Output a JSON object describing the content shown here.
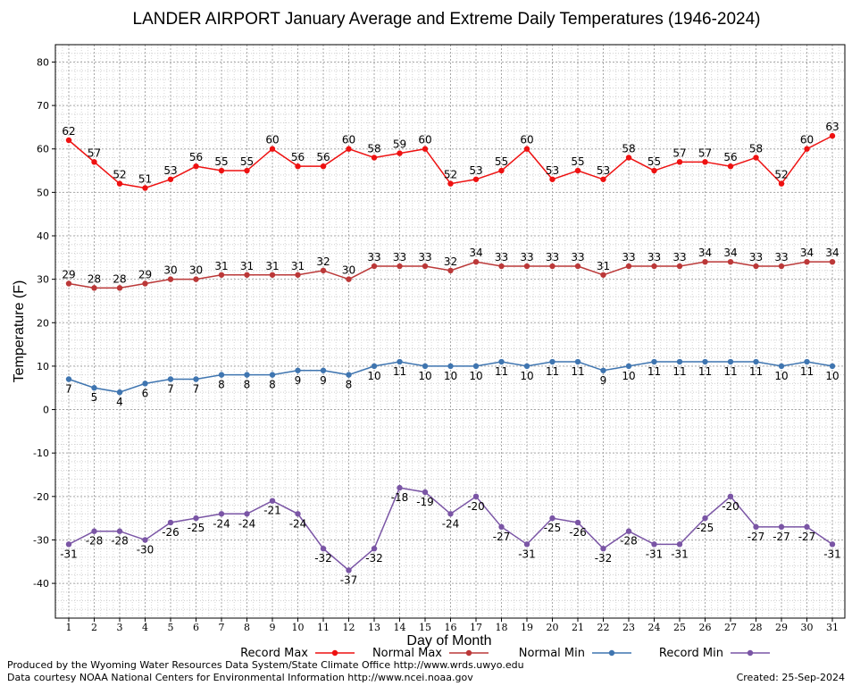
{
  "chart_data": {
    "type": "line",
    "title": "LANDER AIRPORT January Average and Extreme Daily Temperatures (1946-2024)",
    "xlabel": "Day of Month",
    "ylabel": "Temperature (F)",
    "ylim": [
      -48,
      84
    ],
    "yticks": [
      -40,
      -30,
      -20,
      -10,
      0,
      10,
      20,
      30,
      40,
      50,
      60,
      70,
      80
    ],
    "grid": true,
    "legend_position": "bottom",
    "x": [
      1,
      2,
      3,
      4,
      5,
      6,
      7,
      8,
      9,
      10,
      11,
      12,
      13,
      14,
      15,
      16,
      17,
      18,
      19,
      20,
      21,
      22,
      23,
      24,
      25,
      26,
      27,
      28,
      29,
      30,
      31
    ],
    "series": [
      {
        "name": "Record Max",
        "color": "#ee1111",
        "label_side": "above",
        "values": [
          62,
          57,
          52,
          51,
          53,
          56,
          55,
          55,
          60,
          56,
          56,
          60,
          58,
          59,
          60,
          52,
          53,
          55,
          60,
          53,
          55,
          53,
          58,
          55,
          57,
          57,
          56,
          58,
          52,
          60,
          63
        ]
      },
      {
        "name": "Normal Max",
        "color": "#bb3838",
        "label_side": "above",
        "values": [
          29,
          28,
          28,
          29,
          30,
          30,
          31,
          31,
          31,
          31,
          32,
          30,
          33,
          33,
          33,
          32,
          34,
          33,
          33,
          33,
          33,
          31,
          33,
          33,
          33,
          34,
          34,
          33,
          33,
          34,
          34
        ]
      },
      {
        "name": "Normal Min",
        "color": "#3f75b0",
        "label_side": "below",
        "values": [
          7,
          5,
          4,
          6,
          7,
          7,
          8,
          8,
          8,
          9,
          9,
          8,
          10,
          11,
          10,
          10,
          10,
          11,
          10,
          11,
          11,
          9,
          10,
          11,
          11,
          11,
          11,
          11,
          10,
          11,
          10
        ]
      },
      {
        "name": "Record Min",
        "color": "#7a55a5",
        "label_side": "below",
        "values": [
          -31,
          -28,
          -28,
          -30,
          -26,
          -25,
          -24,
          -24,
          -21,
          -24,
          -32,
          -37,
          -32,
          -18,
          -19,
          -24,
          -20,
          -27,
          -31,
          -25,
          -26,
          -32,
          -28,
          -31,
          -31,
          -25,
          -20,
          -27,
          -27,
          -27,
          -31
        ]
      }
    ]
  },
  "credits": {
    "produced_by": "Produced by the Wyoming Water Resources Data System/State Climate Office http://www.wrds.uwyo.edu",
    "data_courtesy": "Data courtesy NOAA National Centers for Environmental Information http://www.ncei.noaa.gov",
    "created": "Created:  25-Sep-2024"
  }
}
